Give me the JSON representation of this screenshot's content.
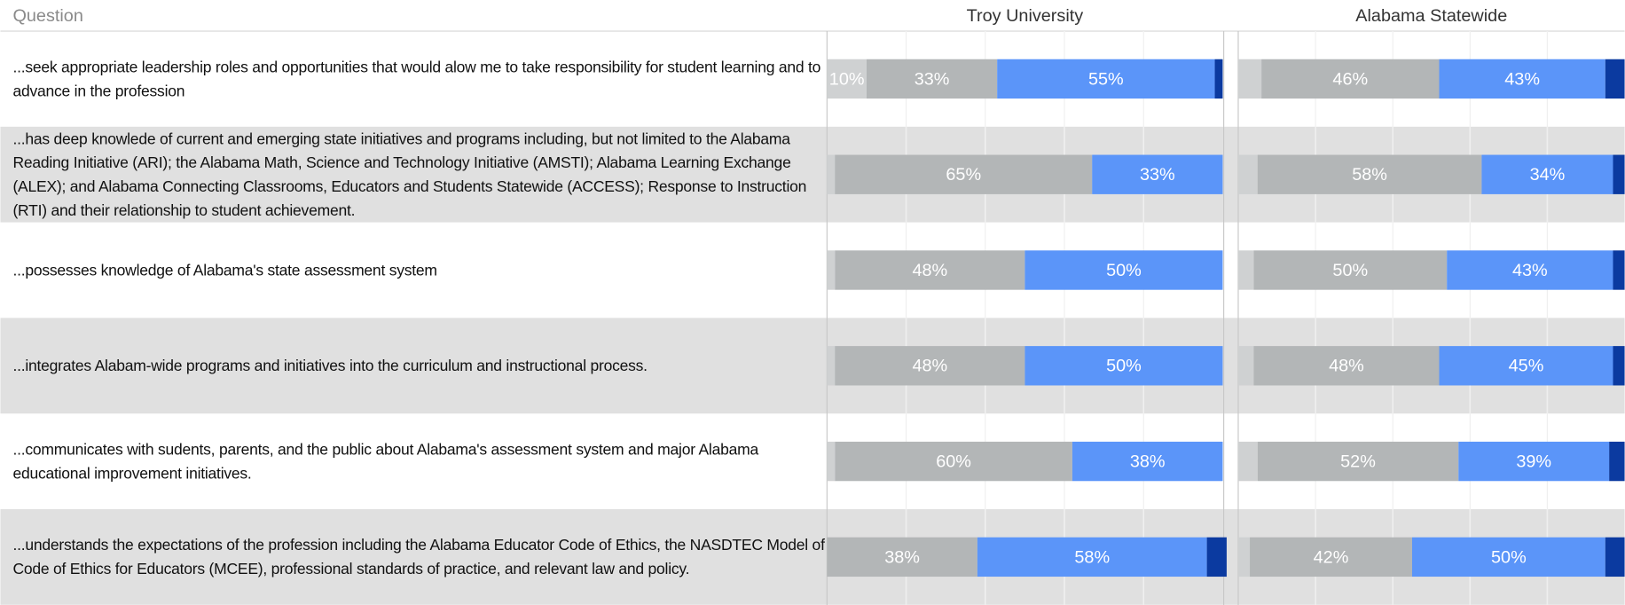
{
  "table": {
    "header": "Question",
    "rows": [
      "...seek appropriate leadership roles and opportunities that would alow me to take responsibility for student learning and to advance in the profession",
      "...has deep knowlede of current and emerging state initiatives and programs including, but not limited to the Alabama Reading Initiative (ARI); the Alabama Math, Science and Technology Initiative (AMSTI); Alabama Learning Exchange (ALEX); and Alabama Connecting Classrooms, Educators and Students Statewide (ACCESS); Response to Instruction (RTI) and their relationship to student achievement.",
      "...possesses knowledge of Alabama's state assessment system",
      "...integrates Alabam-wide programs and initiatives into the curriculum and instructional process.",
      "...communicates with sudents, parents, and the public about Alabama's assessment system and major Alabama educational improvement initiatives.",
      "...understands the expectations of the profession including the Alabama Educator Code of Ethics, the NASDTEC Model of Code of Ethics for Educators (MCEE), professional standards of practice, and relevant law and policy."
    ]
  },
  "chart_data": [
    {
      "type": "stacked-bar",
      "title": "Troy University",
      "xlim": [
        0,
        100
      ],
      "xticks": [
        20,
        40,
        60,
        80
      ],
      "grid": true,
      "series": [
        {
          "color": "#cfd1d2",
          "values": [
            10,
            2,
            2,
            2,
            2,
            0
          ],
          "value_labels": [
            "10%",
            null,
            null,
            null,
            null,
            null
          ]
        },
        {
          "color": "#b3b6b7",
          "values": [
            33,
            65,
            48,
            48,
            60,
            38
          ],
          "value_labels": [
            "33%",
            "65%",
            "48%",
            "48%",
            "60%",
            "38%"
          ]
        },
        {
          "color": "#5b95f9",
          "values": [
            55,
            33,
            50,
            50,
            38,
            58
          ],
          "value_labels": [
            "55%",
            "33%",
            "50%",
            "50%",
            "38%",
            "58%"
          ]
        },
        {
          "color": "#0b3aa0",
          "values": [
            2,
            0,
            0,
            0,
            0,
            5
          ],
          "value_labels": [
            null,
            null,
            null,
            null,
            null,
            null
          ]
        }
      ]
    },
    {
      "type": "stacked-bar",
      "title": "Alabama Statewide",
      "xlim": [
        0,
        100
      ],
      "xticks": [
        20,
        40,
        60,
        80
      ],
      "grid": true,
      "series": [
        {
          "color": "#cfd1d2",
          "values": [
            6,
            5,
            4,
            4,
            5,
            3
          ],
          "value_labels": [
            null,
            null,
            null,
            null,
            null,
            null
          ]
        },
        {
          "color": "#b3b6b7",
          "values": [
            46,
            58,
            50,
            48,
            52,
            42
          ],
          "value_labels": [
            "46%",
            "58%",
            "50%",
            "48%",
            "52%",
            "42%"
          ]
        },
        {
          "color": "#5b95f9",
          "values": [
            43,
            34,
            43,
            45,
            39,
            50
          ],
          "value_labels": [
            "43%",
            "34%",
            "43%",
            "45%",
            "39%",
            "50%"
          ]
        },
        {
          "color": "#0b3aa0",
          "values": [
            5,
            3,
            3,
            3,
            4,
            5
          ],
          "value_labels": [
            null,
            null,
            null,
            null,
            null,
            null
          ]
        }
      ]
    }
  ]
}
